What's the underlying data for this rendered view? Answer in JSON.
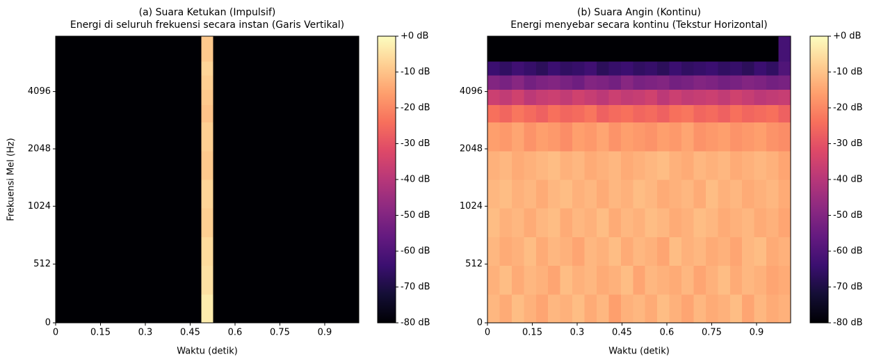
{
  "chart_data": [
    {
      "type": "heatmap",
      "title": "(a) Suara Ketukan (Impulsif)",
      "subtitle": "Energi di seluruh frekuensi secara instan (Garis Vertikal)",
      "xlabel": "Waktu (detik)",
      "ylabel": "Frekuensi Mel (Hz)",
      "xlim": [
        0,
        1.014
      ],
      "xticks": [
        0,
        0.15,
        0.3,
        0.45,
        0.6,
        0.75,
        0.9
      ],
      "ylim": [
        0,
        8000
      ],
      "yscale": "symlog",
      "linthresh": 1000,
      "base": 2,
      "yticks": [
        0,
        512,
        1024,
        2048,
        4096
      ],
      "y_bins": [
        0,
        250,
        500,
        750,
        1000,
        1414,
        2000,
        2828,
        3500,
        4200,
        5000,
        5900,
        8000
      ],
      "colormap": "magma",
      "clim": [
        -80,
        0
      ],
      "cticks": [
        {
          "value": 0,
          "label": "+0 dB"
        },
        {
          "value": -10,
          "label": "-10 dB"
        },
        {
          "value": -20,
          "label": "-20 dB"
        },
        {
          "value": -30,
          "label": "-30 dB"
        },
        {
          "value": -40,
          "label": "-40 dB"
        },
        {
          "value": -50,
          "label": "-50 dB"
        },
        {
          "value": -60,
          "label": "-60 dB"
        },
        {
          "value": -70,
          "label": "-70 dB"
        },
        {
          "value": -80,
          "label": "-80 dB"
        }
      ],
      "z": [
        [
          -80,
          -80,
          -80,
          -80,
          -80,
          -80,
          -80,
          -80,
          -80,
          -80,
          -80,
          -80,
          -3,
          -80,
          -80,
          -80,
          -80,
          -80,
          -80,
          -80,
          -80,
          -80,
          -80,
          -80,
          -80
        ],
        [
          -80,
          -80,
          -80,
          -80,
          -80,
          -80,
          -80,
          -80,
          -80,
          -80,
          -80,
          -80,
          -5,
          -80,
          -80,
          -80,
          -80,
          -80,
          -80,
          -80,
          -80,
          -80,
          -80,
          -80,
          -80
        ],
        [
          -80,
          -80,
          -80,
          -80,
          -80,
          -80,
          -80,
          -80,
          -80,
          -80,
          -80,
          -80,
          -6,
          -80,
          -80,
          -80,
          -80,
          -80,
          -80,
          -80,
          -80,
          -80,
          -80,
          -80,
          -80
        ],
        [
          -80,
          -80,
          -80,
          -80,
          -80,
          -80,
          -80,
          -80,
          -80,
          -80,
          -80,
          -80,
          -8,
          -80,
          -80,
          -80,
          -80,
          -80,
          -80,
          -80,
          -80,
          -80,
          -80,
          -80,
          -80
        ],
        [
          -80,
          -80,
          -80,
          -80,
          -80,
          -80,
          -80,
          -80,
          -80,
          -80,
          -80,
          -80,
          -7,
          -80,
          -80,
          -80,
          -80,
          -80,
          -80,
          -80,
          -80,
          -80,
          -80,
          -80,
          -80
        ],
        [
          -80,
          -80,
          -80,
          -80,
          -80,
          -80,
          -80,
          -80,
          -80,
          -80,
          -80,
          -80,
          -9,
          -80,
          -80,
          -80,
          -80,
          -80,
          -80,
          -80,
          -80,
          -80,
          -80,
          -80,
          -80
        ],
        [
          -80,
          -80,
          -80,
          -80,
          -80,
          -80,
          -80,
          -80,
          -80,
          -80,
          -80,
          -80,
          -8,
          -80,
          -80,
          -80,
          -80,
          -80,
          -80,
          -80,
          -80,
          -80,
          -80,
          -80,
          -80
        ],
        [
          -80,
          -80,
          -80,
          -80,
          -80,
          -80,
          -80,
          -80,
          -80,
          -80,
          -80,
          -80,
          -10,
          -80,
          -80,
          -80,
          -80,
          -80,
          -80,
          -80,
          -80,
          -80,
          -80,
          -80,
          -80
        ],
        [
          -80,
          -80,
          -80,
          -80,
          -80,
          -80,
          -80,
          -80,
          -80,
          -80,
          -80,
          -80,
          -9,
          -80,
          -80,
          -80,
          -80,
          -80,
          -80,
          -80,
          -80,
          -80,
          -80,
          -80,
          -80
        ],
        [
          -80,
          -80,
          -80,
          -80,
          -80,
          -80,
          -80,
          -80,
          -80,
          -80,
          -80,
          -80,
          -8,
          -80,
          -80,
          -80,
          -80,
          -80,
          -80,
          -80,
          -80,
          -80,
          -80,
          -80,
          -80
        ],
        [
          -80,
          -80,
          -80,
          -80,
          -80,
          -80,
          -80,
          -80,
          -80,
          -80,
          -80,
          -80,
          -7,
          -80,
          -80,
          -80,
          -80,
          -80,
          -80,
          -80,
          -80,
          -80,
          -80,
          -80,
          -80
        ],
        [
          -80,
          -80,
          -80,
          -80,
          -80,
          -80,
          -80,
          -80,
          -80,
          -80,
          -80,
          -80,
          -9,
          -80,
          -80,
          -80,
          -80,
          -80,
          -80,
          -80,
          -80,
          -80,
          -80,
          -80,
          -80
        ]
      ]
    },
    {
      "type": "heatmap",
      "title": "(b) Suara Angin (Kontinu)",
      "subtitle": "Energi menyebar secara kontinu (Tekstur Horizontal)",
      "xlabel": "Waktu (detik)",
      "xlim": [
        0,
        1.014
      ],
      "xticks": [
        0,
        0.15,
        0.3,
        0.45,
        0.6,
        0.75,
        0.9
      ],
      "ylim": [
        0,
        8000
      ],
      "yscale": "symlog",
      "linthresh": 1000,
      "base": 2,
      "yticks": [
        0,
        512,
        1024,
        2048,
        4096
      ],
      "y_bins": [
        0,
        250,
        500,
        750,
        1000,
        1414,
        2000,
        2828,
        3500,
        4200,
        5000,
        5900,
        8000
      ],
      "colormap": "magma",
      "clim": [
        -80,
        0
      ],
      "cticks": [
        {
          "value": 0,
          "label": "+0 dB"
        },
        {
          "value": -10,
          "label": "-10 dB"
        },
        {
          "value": -20,
          "label": "-20 dB"
        },
        {
          "value": -30,
          "label": "-30 dB"
        },
        {
          "value": -40,
          "label": "-40 dB"
        },
        {
          "value": -50,
          "label": "-50 dB"
        },
        {
          "value": -60,
          "label": "-60 dB"
        },
        {
          "value": -70,
          "label": "-70 dB"
        },
        {
          "value": -80,
          "label": "-80 dB"
        }
      ],
      "z": [
        [
          -12,
          -14,
          -11,
          -13,
          -15,
          -12,
          -13,
          -11,
          -14,
          -12,
          -16,
          -13,
          -12,
          -14,
          -11,
          -13,
          -15,
          -12,
          -14,
          -13,
          -11,
          -15,
          -12,
          -14,
          -13
        ],
        [
          -13,
          -11,
          -14,
          -12,
          -13,
          -15,
          -11,
          -13,
          -12,
          -14,
          -13,
          -11,
          -15,
          -12,
          -13,
          -14,
          -12,
          -15,
          -13,
          -11,
          -14,
          -12,
          -13,
          -15,
          -14
        ],
        [
          -12,
          -14,
          -13,
          -11,
          -14,
          -12,
          -13,
          -15,
          -12,
          -13,
          -11,
          -14,
          -12,
          -13,
          -15,
          -11,
          -13,
          -12,
          -14,
          -13,
          -15,
          -12,
          -11,
          -14,
          -13
        ],
        [
          -11,
          -13,
          -12,
          -14,
          -12,
          -11,
          -14,
          -12,
          -13,
          -11,
          -14,
          -12,
          -13,
          -11,
          -12,
          -14,
          -13,
          -11,
          -12,
          -14,
          -13,
          -12,
          -14,
          -13,
          -15
        ],
        [
          -12,
          -11,
          -13,
          -12,
          -14,
          -12,
          -11,
          -13,
          -12,
          -14,
          -12,
          -13,
          -11,
          -12,
          -14,
          -13,
          -12,
          -14,
          -11,
          -13,
          -12,
          -14,
          -13,
          -12,
          -14
        ],
        [
          -13,
          -12,
          -14,
          -13,
          -12,
          -11,
          -13,
          -12,
          -14,
          -13,
          -12,
          -14,
          -13,
          -12,
          -11,
          -13,
          -14,
          -12,
          -13,
          -12,
          -14,
          -13,
          -12,
          -13,
          -15
        ],
        [
          -16,
          -17,
          -15,
          -18,
          -16,
          -17,
          -19,
          -16,
          -17,
          -15,
          -18,
          -16,
          -17,
          -18,
          -16,
          -17,
          -15,
          -18,
          -17,
          -16,
          -18,
          -17,
          -16,
          -18,
          -19
        ],
        [
          -24,
          -26,
          -23,
          -25,
          -27,
          -24,
          -26,
          -25,
          -23,
          -27,
          -25,
          -24,
          -26,
          -25,
          -27,
          -24,
          -23,
          -26,
          -25,
          -27,
          -24,
          -26,
          -25,
          -24,
          -27
        ],
        [
          -36,
          -38,
          -35,
          -39,
          -37,
          -36,
          -38,
          -35,
          -37,
          -39,
          -36,
          -38,
          -37,
          -35,
          -39,
          -36,
          -38,
          -37,
          -36,
          -38,
          -35,
          -37,
          -39,
          -38,
          -37
        ],
        [
          -50,
          -52,
          -49,
          -53,
          -51,
          -50,
          -52,
          -54,
          -50,
          -51,
          -53,
          -49,
          -52,
          -51,
          -50,
          -53,
          -52,
          -50,
          -51,
          -53,
          -52,
          -50,
          -51,
          -53,
          -52
        ],
        [
          -64,
          -66,
          -63,
          -65,
          -67,
          -64,
          -66,
          -65,
          -63,
          -67,
          -65,
          -64,
          -66,
          -65,
          -67,
          -64,
          -66,
          -65,
          -64,
          -66,
          -65,
          -67,
          -64,
          -66,
          -60
        ],
        [
          -80,
          -80,
          -80,
          -80,
          -80,
          -80,
          -80,
          -80,
          -80,
          -80,
          -80,
          -80,
          -80,
          -80,
          -80,
          -80,
          -80,
          -80,
          -80,
          -80,
          -80,
          -80,
          -80,
          -80,
          -62
        ]
      ]
    }
  ]
}
